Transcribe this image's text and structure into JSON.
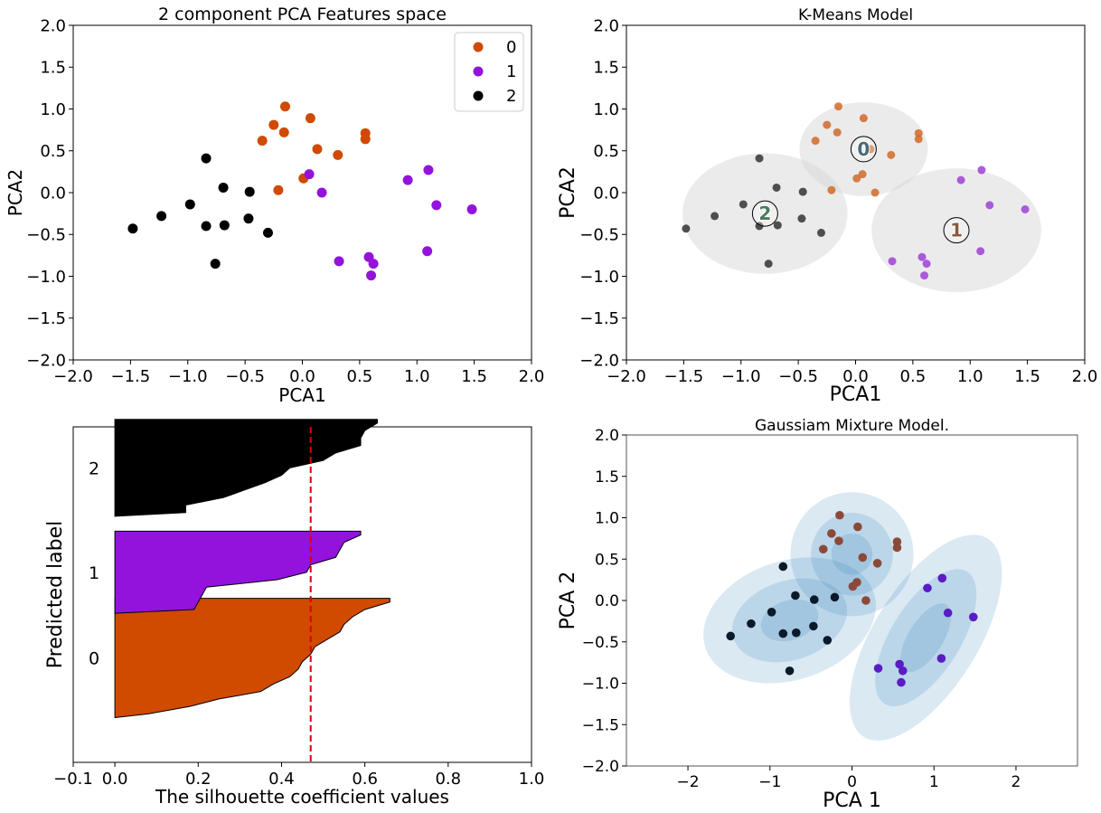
{
  "chart_data": [
    {
      "id": "pca",
      "type": "scatter",
      "title": "2 component PCA Features space",
      "xlabel": "PCA1",
      "ylabel": "PCA2",
      "xlim": [
        -2.0,
        2.0
      ],
      "ylim": [
        -2.0,
        2.0
      ],
      "xticks": [
        -2.0,
        -1.5,
        -1.0,
        -0.5,
        0.0,
        0.5,
        1.0,
        1.5,
        2.0
      ],
      "yticks": [
        -2.0,
        -1.5,
        -1.0,
        -0.5,
        0.0,
        0.5,
        1.0,
        1.5,
        2.0
      ],
      "xtick_labels": [
        "−2.0",
        "−1.5",
        "−1.0",
        "−0.5",
        "0.0",
        "0.5",
        "1.0",
        "1.5",
        "2.0"
      ],
      "ytick_labels": [
        "−2.0",
        "−1.5",
        "−1.0",
        "−0.5",
        "0.0",
        "0.5",
        "1.0",
        "1.5",
        "2.0"
      ],
      "legend": "top-right",
      "series": [
        {
          "name": "0",
          "color": "#d04a00",
          "points": [
            [
              -0.15,
              1.03
            ],
            [
              0.07,
              0.89
            ],
            [
              -0.25,
              0.81
            ],
            [
              -0.16,
              0.72
            ],
            [
              0.55,
              0.71
            ],
            [
              0.55,
              0.64
            ],
            [
              -0.35,
              0.62
            ],
            [
              0.13,
              0.52
            ],
            [
              0.31,
              0.45
            ],
            [
              0.01,
              0.17
            ],
            [
              -0.21,
              0.03
            ]
          ]
        },
        {
          "name": "1",
          "color": "#9313dc",
          "points": [
            [
              1.1,
              0.27
            ],
            [
              0.06,
              0.22
            ],
            [
              0.92,
              0.15
            ],
            [
              1.17,
              -0.15
            ],
            [
              1.48,
              -0.2
            ],
            [
              0.17,
              0.0
            ],
            [
              1.09,
              -0.7
            ],
            [
              0.58,
              -0.77
            ],
            [
              0.62,
              -0.85
            ],
            [
              0.32,
              -0.82
            ],
            [
              0.6,
              -0.99
            ]
          ]
        },
        {
          "name": "2",
          "color": "#000000",
          "points": [
            [
              -0.84,
              0.41
            ],
            [
              -0.69,
              0.06
            ],
            [
              -0.46,
              0.01
            ],
            [
              -0.98,
              -0.14
            ],
            [
              -1.23,
              -0.28
            ],
            [
              -0.47,
              -0.31
            ],
            [
              -0.84,
              -0.4
            ],
            [
              -0.68,
              -0.39
            ],
            [
              -0.3,
              -0.48
            ],
            [
              -1.48,
              -0.43
            ],
            [
              -0.76,
              -0.85
            ]
          ]
        }
      ]
    },
    {
      "id": "kmeans",
      "type": "scatter",
      "title": "K-Means Model",
      "xlabel": "PCA1",
      "ylabel": "PCA2",
      "xlim": [
        -2.0,
        2.0
      ],
      "ylim": [
        -2.0,
        2.0
      ],
      "xticks": [
        -2.0,
        -1.5,
        -1.0,
        -0.5,
        0.0,
        0.5,
        1.0,
        1.5,
        2.0
      ],
      "yticks": [
        -2.0,
        -1.5,
        -1.0,
        -0.5,
        0.0,
        0.5,
        1.0,
        1.5,
        2.0
      ],
      "xtick_labels": [
        "−2.0",
        "−1.5",
        "−1.0",
        "−0.5",
        "0.0",
        "0.5",
        "1.0",
        "1.5",
        "2.0"
      ],
      "ytick_labels": [
        "−2.0",
        "−1.5",
        "−1.0",
        "−0.5",
        "0.0",
        "0.5",
        "1.0",
        "1.5",
        "2.0"
      ],
      "clusters": [
        {
          "label": "0",
          "color": "#d06a2a",
          "text_color": "#4a6a7a",
          "center": [
            0.07,
            0.52
          ],
          "radius": [
            0.56,
            0.56
          ],
          "points": [
            [
              -0.15,
              1.03
            ],
            [
              0.07,
              0.89
            ],
            [
              -0.25,
              0.81
            ],
            [
              -0.16,
              0.72
            ],
            [
              0.55,
              0.71
            ],
            [
              0.55,
              0.64
            ],
            [
              -0.35,
              0.62
            ],
            [
              0.13,
              0.52
            ],
            [
              0.31,
              0.45
            ],
            [
              0.01,
              0.17
            ],
            [
              0.06,
              0.22
            ],
            [
              -0.21,
              0.03
            ],
            [
              0.17,
              0.0
            ]
          ]
        },
        {
          "label": "1",
          "color": "#a040d8",
          "text_color": "#8a5a3a",
          "center": [
            0.88,
            -0.45
          ],
          "radius": [
            0.74,
            0.74
          ],
          "points": [
            [
              1.1,
              0.27
            ],
            [
              0.92,
              0.15
            ],
            [
              1.17,
              -0.15
            ],
            [
              1.48,
              -0.2
            ],
            [
              1.09,
              -0.7
            ],
            [
              0.58,
              -0.77
            ],
            [
              0.62,
              -0.85
            ],
            [
              0.32,
              -0.82
            ],
            [
              0.6,
              -0.99
            ]
          ]
        },
        {
          "label": "2",
          "color": "#333333",
          "text_color": "#4a7a5a",
          "center": [
            -0.79,
            -0.25
          ],
          "radius": [
            0.72,
            0.72
          ],
          "points": [
            [
              -0.84,
              0.41
            ],
            [
              -0.69,
              0.06
            ],
            [
              -0.46,
              0.01
            ],
            [
              -0.98,
              -0.14
            ],
            [
              -1.23,
              -0.28
            ],
            [
              -0.47,
              -0.31
            ],
            [
              -0.84,
              -0.4
            ],
            [
              -0.68,
              -0.39
            ],
            [
              -0.3,
              -0.48
            ],
            [
              -1.48,
              -0.43
            ],
            [
              -0.76,
              -0.85
            ]
          ]
        }
      ]
    },
    {
      "id": "silhouette",
      "type": "area",
      "title": "",
      "xlabel": "The silhouette coefficient values",
      "ylabel": "Predicted label",
      "xlim": [
        -0.1,
        1.0
      ],
      "ylim": [
        0,
        45
      ],
      "xticks": [
        -0.1,
        0.0,
        0.2,
        0.4,
        0.6,
        0.8,
        1.0
      ],
      "xtick_labels": [
        "−0.1",
        "0.0",
        "0.2",
        "0.4",
        "0.6",
        "0.8",
        "1.0"
      ],
      "average_score": 0.47,
      "average_line_color": "#dd0000",
      "clusters": [
        {
          "label": "0",
          "color": "#d04a00",
          "y_lower": 6,
          "values": [
            0.66,
            0.6,
            0.57,
            0.55,
            0.54,
            0.51,
            0.48,
            0.47,
            0.45,
            0.44,
            0.42,
            0.38,
            0.35,
            0.25,
            0.18,
            0.08
          ]
        },
        {
          "label": "1",
          "color": "#9313dc",
          "y_lower": 20,
          "values": [
            0.59,
            0.55,
            0.54,
            0.53,
            0.47,
            0.46,
            0.39,
            0.22,
            0.21,
            0.2,
            0.19
          ]
        },
        {
          "label": "2",
          "color": "#000000",
          "y_lower": 33,
          "values": [
            0.63,
            0.6,
            0.59,
            0.59,
            0.53,
            0.5,
            0.42,
            0.4,
            0.36,
            0.31,
            0.26,
            0.17,
            0.17
          ]
        }
      ]
    },
    {
      "id": "gmm",
      "type": "scatter",
      "title": "Gaussiam Mixture Model.",
      "xlabel": "PCA 1",
      "ylabel": "PCA 2",
      "xlim": [
        -2.75,
        2.75
      ],
      "ylim": [
        -2.0,
        2.0
      ],
      "xticks": [
        -2,
        -1,
        0,
        1,
        2
      ],
      "xtick_labels": [
        "−2",
        "−1",
        "0",
        "1",
        "2"
      ],
      "yticks": [
        -2.0,
        -1.5,
        -1.0,
        -0.5,
        0.0,
        0.5,
        1.0,
        1.5,
        2.0
      ],
      "ytick_labels": [
        "−2.0",
        "−1.5",
        "−1.0",
        "−0.5",
        "0.0",
        "0.5",
        "1.0",
        "1.5",
        "2.0"
      ],
      "ellipse_color": "#1f77b4",
      "components": [
        {
          "center": [
            -0.76,
            -0.24
          ],
          "axes": [
            0.72,
            0.48
          ],
          "angle": 18
        },
        {
          "center": [
            0.0,
            0.56
          ],
          "axes": [
            0.5,
            0.5
          ],
          "angle": 0
        },
        {
          "center": [
            0.9,
            -0.45
          ],
          "axes": [
            0.95,
            0.42
          ],
          "angle": 58
        }
      ],
      "ellipse_scales": [
        1,
        2,
        3
      ],
      "series": [
        {
          "name": "0",
          "color": "#8b4a38",
          "points": [
            [
              -0.15,
              1.03
            ],
            [
              0.07,
              0.89
            ],
            [
              -0.25,
              0.81
            ],
            [
              -0.16,
              0.72
            ],
            [
              0.55,
              0.71
            ],
            [
              0.55,
              0.64
            ],
            [
              -0.35,
              0.62
            ],
            [
              0.13,
              0.52
            ],
            [
              0.31,
              0.45
            ],
            [
              0.01,
              0.17
            ],
            [
              0.06,
              0.22
            ],
            [
              0.17,
              0.0
            ]
          ]
        },
        {
          "name": "1",
          "color": "#5a1cc4",
          "points": [
            [
              1.1,
              0.27
            ],
            [
              0.92,
              0.15
            ],
            [
              1.17,
              -0.15
            ],
            [
              1.48,
              -0.2
            ],
            [
              1.09,
              -0.7
            ],
            [
              0.58,
              -0.77
            ],
            [
              0.62,
              -0.85
            ],
            [
              0.32,
              -0.82
            ],
            [
              0.6,
              -0.99
            ]
          ]
        },
        {
          "name": "2",
          "color": "#0a1a2a",
          "points": [
            [
              -0.84,
              0.41
            ],
            [
              -0.69,
              0.06
            ],
            [
              -0.46,
              0.01
            ],
            [
              -0.21,
              0.04
            ],
            [
              -0.98,
              -0.14
            ],
            [
              -1.23,
              -0.28
            ],
            [
              -0.47,
              -0.31
            ],
            [
              -0.84,
              -0.4
            ],
            [
              -0.68,
              -0.39
            ],
            [
              -0.3,
              -0.48
            ],
            [
              -1.48,
              -0.43
            ],
            [
              -0.76,
              -0.85
            ]
          ]
        }
      ]
    }
  ]
}
